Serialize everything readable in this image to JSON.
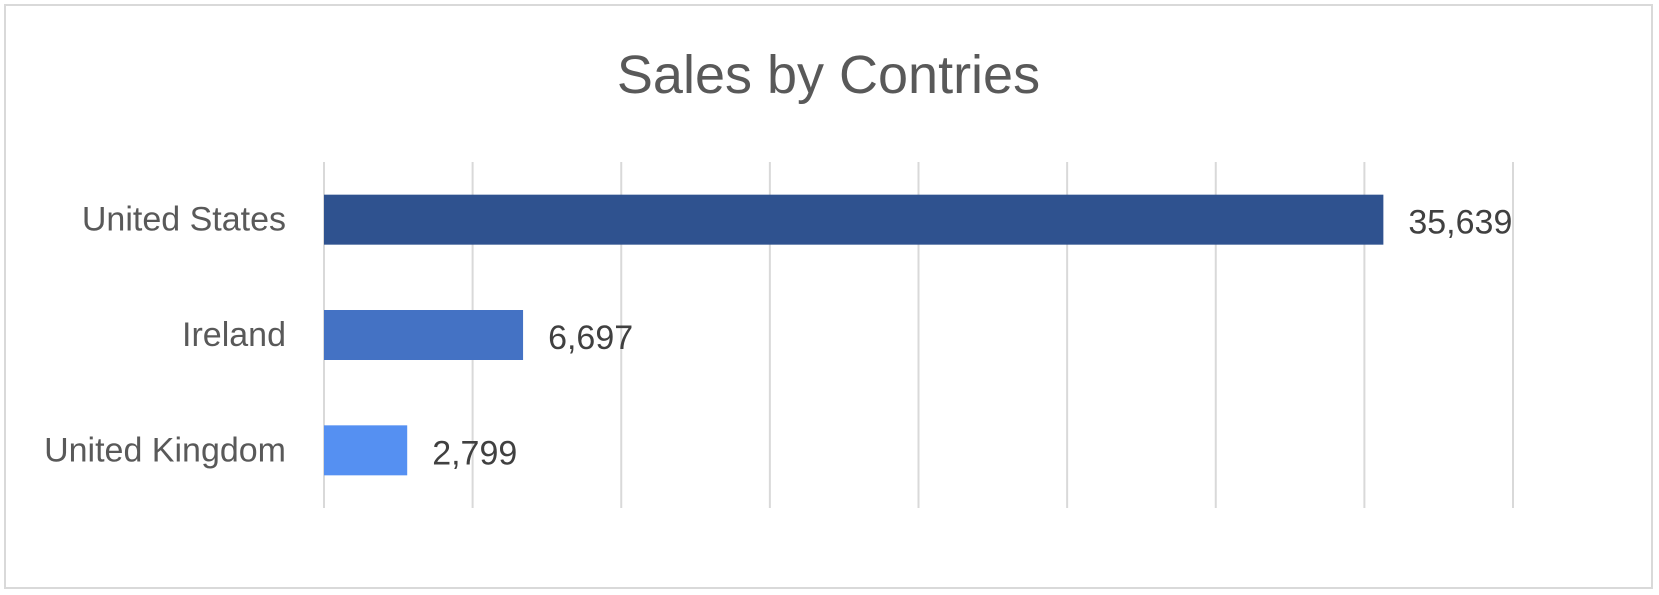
{
  "chart_data": {
    "type": "bar",
    "orientation": "horizontal",
    "title": "Sales by Contries",
    "categories": [
      "United States",
      "Ireland",
      "United Kingdom"
    ],
    "values": [
      35639,
      6697,
      2799
    ],
    "data_labels": [
      "35,639",
      "6,697",
      "2,799"
    ],
    "colors": [
      "#2F528F",
      "#4472C4",
      "#5590F2"
    ],
    "xlim": [
      0,
      40000
    ],
    "grid": true,
    "legend": "none",
    "xlabel": "",
    "ylabel": ""
  }
}
